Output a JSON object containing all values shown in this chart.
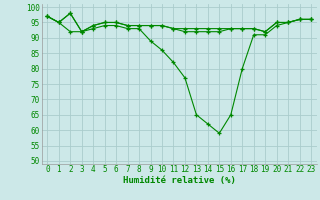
{
  "series": [
    {
      "x": [
        0,
        1,
        2,
        3,
        4,
        5,
        6,
        7,
        8,
        9,
        10,
        11,
        12,
        13,
        14,
        15,
        16,
        17,
        18,
        19,
        20,
        21,
        22,
        23
      ],
      "y": [
        97,
        95,
        92,
        92,
        93,
        94,
        94,
        93,
        93,
        89,
        86,
        82,
        77,
        65,
        62,
        59,
        65,
        80,
        91,
        91,
        94,
        95,
        96,
        96
      ]
    },
    {
      "x": [
        0,
        1,
        2,
        3,
        4,
        5,
        6,
        7,
        8,
        9,
        10,
        11,
        12,
        13,
        14,
        15,
        16,
        17,
        18,
        19,
        20,
        21,
        22,
        23
      ],
      "y": [
        97,
        95,
        98,
        92,
        94,
        95,
        95,
        94,
        94,
        94,
        94,
        93,
        93,
        93,
        93,
        93,
        93,
        93,
        93,
        92,
        95,
        95,
        96,
        96
      ]
    },
    {
      "x": [
        0,
        1,
        2,
        3,
        4,
        5,
        6,
        7,
        8,
        9,
        10,
        11,
        12,
        13,
        14,
        15,
        16,
        17,
        18,
        19,
        20,
        21,
        22,
        23
      ],
      "y": [
        97,
        95,
        98,
        92,
        94,
        95,
        95,
        94,
        94,
        94,
        94,
        93,
        92,
        92,
        92,
        92,
        93,
        93,
        93,
        92,
        95,
        95,
        96,
        96
      ]
    }
  ],
  "line_color": "#008800",
  "marker_color": "#008800",
  "bg_color": "#cce8e8",
  "grid_color": "#aacccc",
  "xlabel": "Humidité relative (%)",
  "xlabel_color": "#008800",
  "xlabel_fontsize": 6.5,
  "tick_color": "#008800",
  "tick_fontsize": 5.5,
  "ylim": [
    49,
    101
  ],
  "xlim": [
    -0.5,
    23.5
  ],
  "yticks": [
    50,
    55,
    60,
    65,
    70,
    75,
    80,
    85,
    90,
    95,
    100
  ],
  "xticks": [
    0,
    1,
    2,
    3,
    4,
    5,
    6,
    7,
    8,
    9,
    10,
    11,
    12,
    13,
    14,
    15,
    16,
    17,
    18,
    19,
    20,
    21,
    22,
    23
  ],
  "xtick_labels": [
    "0",
    "1",
    "2",
    "3",
    "4",
    "5",
    "6",
    "7",
    "8",
    "9",
    "10",
    "11",
    "12",
    "13",
    "14",
    "15",
    "16",
    "17",
    "18",
    "19",
    "20",
    "21",
    "22",
    "23"
  ]
}
